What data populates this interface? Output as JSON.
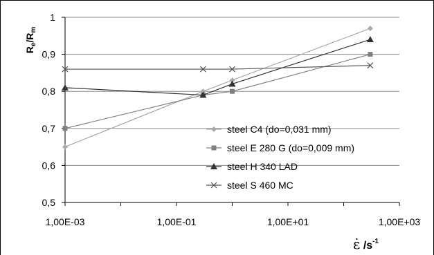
{
  "chart_data": {
    "type": "line",
    "title": "",
    "xlabel": "ε̇ /s⁻¹",
    "xlabel_parts": {
      "symbol": "ε̇",
      "unit": " /s",
      "exponent": "-1"
    },
    "ylabel": "Re/Rm",
    "ylabel_parts": {
      "r1": "R",
      "s1": "e",
      "slash": "/",
      "r2": "R",
      "s2": "m"
    },
    "x_scale": "log",
    "xlim": [
      0.001,
      1000
    ],
    "ylim": [
      0.5,
      1.0
    ],
    "x_ticks": [
      0.001,
      0.1,
      10,
      1000
    ],
    "x_tick_labels": [
      "1,00E-03",
      "1,00E-01",
      "1,00E+01",
      "1,00E+03"
    ],
    "y_ticks": [
      0.5,
      0.6,
      0.7,
      0.8,
      0.9,
      1.0
    ],
    "y_tick_labels": [
      "0,5",
      "0,6",
      "0,7",
      "0,8",
      "0,9",
      "1"
    ],
    "grid": "horizontal",
    "legend_position": "right",
    "series": [
      {
        "name": "steel C4  (do=0,031 mm)",
        "color": "#a9a9a9",
        "marker": "diamond",
        "x": [
          0.001,
          0.3,
          1,
          300
        ],
        "y": [
          0.65,
          0.8,
          0.83,
          0.97
        ]
      },
      {
        "name": "steel E 280 G  (do=0,009 mm)",
        "color": "#808080",
        "marker": "square",
        "x": [
          0.001,
          0.3,
          1,
          300
        ],
        "y": [
          0.7,
          0.79,
          0.8,
          0.9
        ]
      },
      {
        "name": "steel H 340 LAD",
        "color": "#333333",
        "marker": "triangle",
        "x": [
          0.001,
          0.3,
          1,
          300
        ],
        "y": [
          0.81,
          0.79,
          0.82,
          0.94
        ]
      },
      {
        "name": "steel S 460 MC",
        "color": "#555555",
        "marker": "x",
        "x": [
          0.001,
          0.3,
          1,
          300
        ],
        "y": [
          0.86,
          0.86,
          0.86,
          0.87
        ]
      }
    ]
  }
}
